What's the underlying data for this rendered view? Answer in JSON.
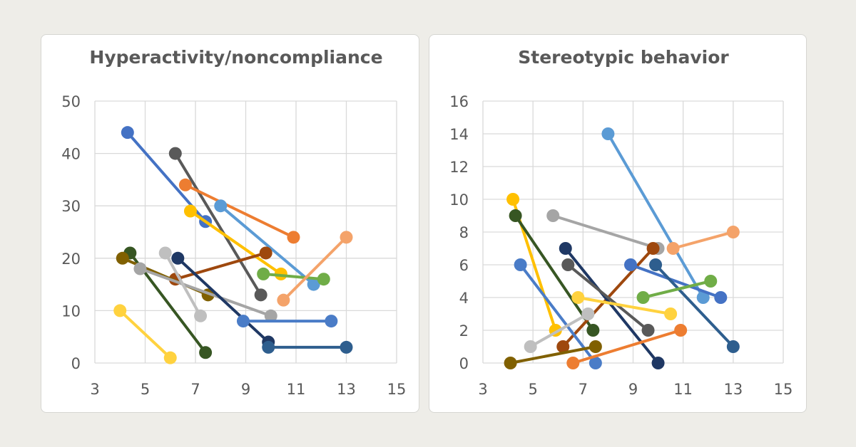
{
  "chart_data": [
    {
      "type": "line",
      "title": "Hyperactivity/noncompliance",
      "xlabel": "",
      "ylabel": "",
      "xlim": [
        3,
        15
      ],
      "ylim": [
        0,
        50
      ],
      "xticks": [
        3,
        5,
        7,
        9,
        11,
        13,
        15
      ],
      "yticks": [
        0,
        10,
        20,
        30,
        40,
        50
      ],
      "grid": true,
      "series": [
        {
          "color": "#4472c4",
          "points": [
            [
              4.3,
              44
            ],
            [
              7.4,
              27
            ]
          ]
        },
        {
          "color": "#595959",
          "points": [
            [
              6.2,
              40
            ],
            [
              9.6,
              13
            ]
          ]
        },
        {
          "color": "#ed7d31",
          "points": [
            [
              6.6,
              34
            ],
            [
              10.9,
              24
            ]
          ]
        },
        {
          "color": "#5b9bd5",
          "points": [
            [
              8.0,
              30
            ],
            [
              11.7,
              15
            ]
          ]
        },
        {
          "color": "#ffc000",
          "points": [
            [
              6.8,
              29
            ],
            [
              10.4,
              17
            ]
          ]
        },
        {
          "color": "#70ad47",
          "points": [
            [
              9.7,
              17
            ],
            [
              12.1,
              16
            ]
          ]
        },
        {
          "color": "#f4a36a",
          "points": [
            [
              10.5,
              12
            ],
            [
              13.0,
              24
            ]
          ]
        },
        {
          "color": "#9e480e",
          "points": [
            [
              6.2,
              16
            ],
            [
              9.8,
              21
            ]
          ]
        },
        {
          "color": "#375623",
          "points": [
            [
              4.4,
              21
            ],
            [
              7.4,
              2
            ]
          ]
        },
        {
          "color": "#806000",
          "points": [
            [
              4.1,
              20
            ],
            [
              7.5,
              13
            ]
          ]
        },
        {
          "color": "#a5a5a5",
          "points": [
            [
              4.8,
              18
            ],
            [
              10.0,
              9
            ]
          ]
        },
        {
          "color": "#bfbfbf",
          "points": [
            [
              5.8,
              21
            ],
            [
              7.2,
              9
            ]
          ]
        },
        {
          "color": "#1f3864",
          "points": [
            [
              6.3,
              20
            ],
            [
              9.9,
              4
            ]
          ]
        },
        {
          "color": "#4a7cc7",
          "points": [
            [
              8.9,
              8
            ],
            [
              12.4,
              8
            ]
          ]
        },
        {
          "color": "#2e5e8e",
          "points": [
            [
              9.9,
              3
            ],
            [
              13.0,
              3
            ]
          ]
        },
        {
          "color": "#ffd23f",
          "points": [
            [
              4.0,
              10
            ],
            [
              6.0,
              1
            ]
          ]
        }
      ]
    },
    {
      "type": "line",
      "title": "Stereotypic behavior",
      "xlabel": "",
      "ylabel": "",
      "xlim": [
        3,
        15
      ],
      "ylim": [
        0,
        16
      ],
      "xticks": [
        3,
        5,
        7,
        9,
        11,
        13,
        15
      ],
      "yticks": [
        0,
        2,
        4,
        6,
        8,
        10,
        12,
        14,
        16
      ],
      "grid": true,
      "series": [
        {
          "color": "#5b9bd5",
          "points": [
            [
              8.0,
              14
            ],
            [
              11.8,
              4
            ]
          ]
        },
        {
          "color": "#ffc000",
          "points": [
            [
              4.2,
              10
            ],
            [
              5.9,
              2
            ]
          ]
        },
        {
          "color": "#375623",
          "points": [
            [
              4.3,
              9
            ],
            [
              7.4,
              2
            ]
          ]
        },
        {
          "color": "#a5a5a5",
          "points": [
            [
              5.8,
              9
            ],
            [
              10.0,
              7
            ]
          ]
        },
        {
          "color": "#f4a36a",
          "points": [
            [
              10.6,
              7
            ],
            [
              13.0,
              8
            ]
          ]
        },
        {
          "color": "#9e480e",
          "points": [
            [
              6.2,
              1
            ],
            [
              9.8,
              7
            ]
          ]
        },
        {
          "color": "#1f3864",
          "points": [
            [
              6.3,
              7
            ],
            [
              10.0,
              0
            ]
          ]
        },
        {
          "color": "#4472c4",
          "points": [
            [
              8.9,
              6
            ],
            [
              12.5,
              4
            ]
          ]
        },
        {
          "color": "#2e5e8e",
          "points": [
            [
              9.9,
              6
            ],
            [
              13.0,
              1
            ]
          ]
        },
        {
          "color": "#595959",
          "points": [
            [
              6.4,
              6
            ],
            [
              9.6,
              2
            ]
          ]
        },
        {
          "color": "#70ad47",
          "points": [
            [
              9.4,
              4
            ],
            [
              12.1,
              5
            ]
          ]
        },
        {
          "color": "#4a7cc7",
          "points": [
            [
              4.5,
              6
            ],
            [
              7.5,
              0
            ]
          ]
        },
        {
          "color": "#ffd23f",
          "points": [
            [
              6.8,
              4
            ],
            [
              10.5,
              3
            ]
          ]
        },
        {
          "color": "#bfbfbf",
          "points": [
            [
              4.9,
              1
            ],
            [
              7.2,
              3
            ]
          ]
        },
        {
          "color": "#806000",
          "points": [
            [
              4.1,
              0
            ],
            [
              7.5,
              1
            ]
          ]
        },
        {
          "color": "#ed7d31",
          "points": [
            [
              6.6,
              0
            ],
            [
              10.9,
              2
            ]
          ]
        }
      ]
    }
  ]
}
